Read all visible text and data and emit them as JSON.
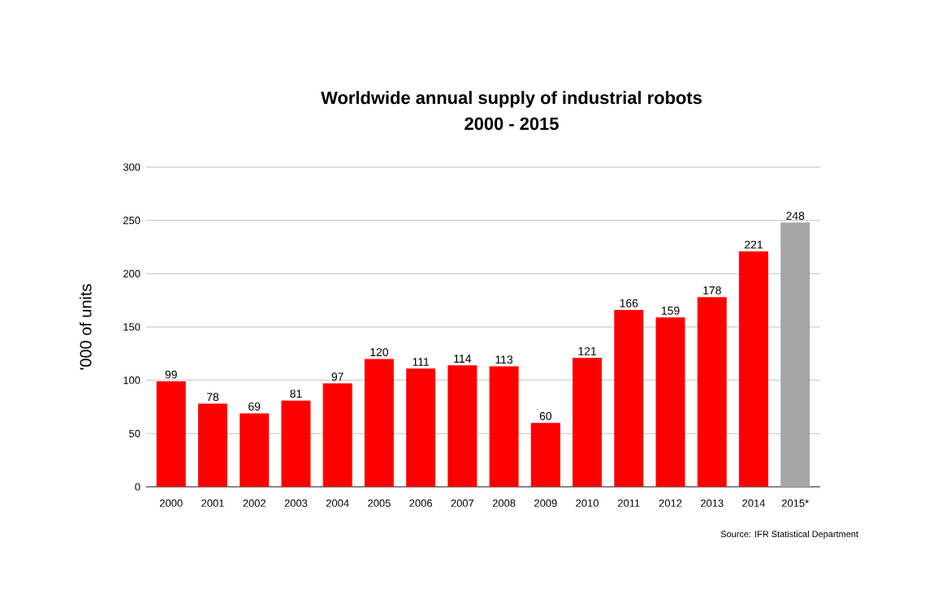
{
  "chart_data": {
    "type": "bar",
    "title": "Worldwide annual supply of industrial robots",
    "subtitle": "2000 - 2015",
    "ylabel": "'000 of units",
    "categories": [
      "2000",
      "2001",
      "2002",
      "2003",
      "2004",
      "2005",
      "2006",
      "2007",
      "2008",
      "2009",
      "2010",
      "2011",
      "2012",
      "2013",
      "2014",
      "2015*"
    ],
    "values": [
      99,
      78,
      69,
      81,
      97,
      120,
      111,
      114,
      113,
      60,
      121,
      166,
      159,
      178,
      221,
      248
    ],
    "colors": [
      "#ff0000",
      "#ff0000",
      "#ff0000",
      "#ff0000",
      "#ff0000",
      "#ff0000",
      "#ff0000",
      "#ff0000",
      "#ff0000",
      "#ff0000",
      "#ff0000",
      "#ff0000",
      "#ff0000",
      "#ff0000",
      "#ff0000",
      "#a6a6a6"
    ],
    "ylim": [
      0,
      300
    ],
    "yticks": [
      0,
      50,
      100,
      150,
      200,
      250,
      300
    ],
    "grid": "y",
    "data_labels": true,
    "annotations": [
      "Source: IFR Statistical Department"
    ]
  }
}
